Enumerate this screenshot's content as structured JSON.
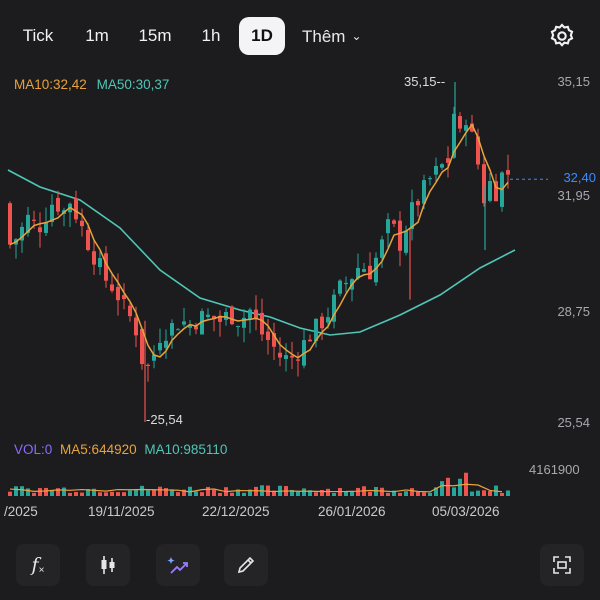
{
  "tabs": [
    {
      "label": "Tick"
    },
    {
      "label": "1m"
    },
    {
      "label": "15m"
    },
    {
      "label": "1h"
    },
    {
      "label": "1D",
      "active": true
    }
  ],
  "more_label": "Thêm",
  "indicators": {
    "ma10": "MA10:32,42",
    "ma50": "MA50:30,37",
    "vol": "VOL:0",
    "vol_ma5": "MA5:644920",
    "vol_ma10": "MA10:985110"
  },
  "colors": {
    "up": "#26a69a",
    "down": "#ef5350",
    "ma10": "#e8a33b",
    "ma50": "#4fc6b6",
    "vol_label": "#8a6cff",
    "accent": "#3a8bff"
  },
  "price_axis": [
    "35,15",
    "31,95",
    "28,75",
    "25,54"
  ],
  "current_price": "32,40",
  "high_marker": "35,15",
  "low_marker": "25,54",
  "volume_axis_max": "4161900",
  "dates": [
    "/2025",
    "19/11/2025",
    "22/12/2025",
    "26/01/2026",
    "05/03/2026"
  ],
  "chart_data": {
    "type": "candlestick",
    "ylim": [
      25.54,
      35.15
    ],
    "high": 35.15,
    "low": 25.54,
    "last": 32.4,
    "ma10": 32.42,
    "ma50": 30.37,
    "volume_max": 4161900
  },
  "toolbar": {
    "icons": [
      "fx-icon",
      "candlestick-icon",
      "sparkle-draw-icon",
      "pencil-icon",
      "fullscreen-icon"
    ]
  }
}
